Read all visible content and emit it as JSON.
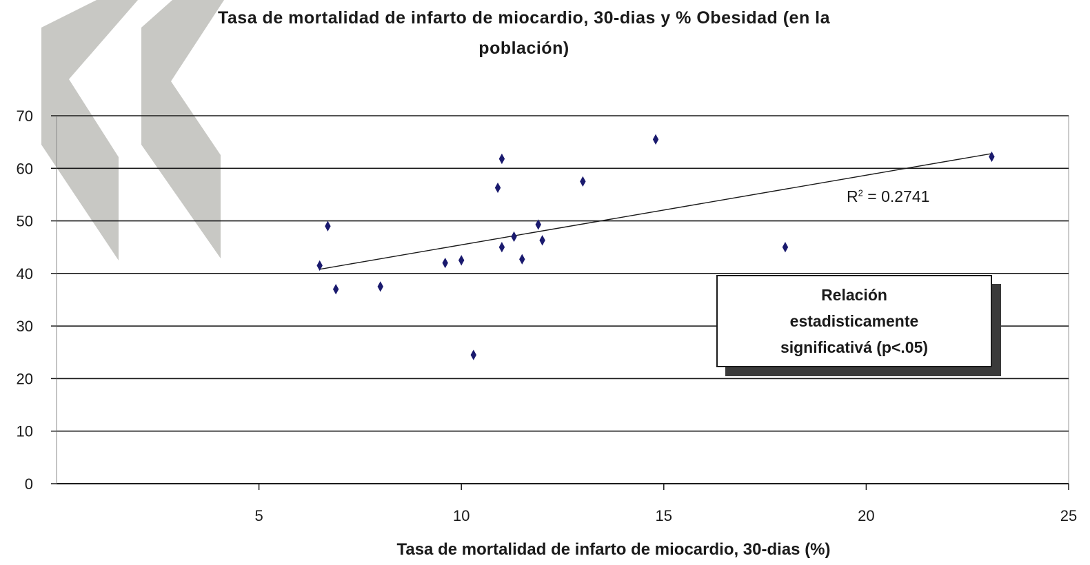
{
  "chart_data": {
    "type": "scatter",
    "title_line1": "Tasa de mortalidad de infarto de miocardio, 30-dias y % Obesidad (en la",
    "title_line2": "población)",
    "xlabel": "Tasa de mortalidad de infarto de miocardio, 30-dias (%)",
    "ylabel": "",
    "xlim": [
      0,
      25
    ],
    "ylim": [
      0,
      70
    ],
    "x_ticks": [
      5,
      10,
      15,
      20,
      25
    ],
    "y_ticks": [
      0,
      10,
      20,
      30,
      40,
      50,
      60,
      70
    ],
    "grid": "horizontal",
    "points": [
      {
        "x": 6.5,
        "y": 41.5
      },
      {
        "x": 6.7,
        "y": 49
      },
      {
        "x": 6.9,
        "y": 37
      },
      {
        "x": 8.0,
        "y": 37.5
      },
      {
        "x": 9.6,
        "y": 42
      },
      {
        "x": 10.0,
        "y": 42.5
      },
      {
        "x": 10.3,
        "y": 24.5
      },
      {
        "x": 10.9,
        "y": 56.3
      },
      {
        "x": 11.0,
        "y": 61.8
      },
      {
        "x": 11.0,
        "y": 45
      },
      {
        "x": 11.3,
        "y": 47
      },
      {
        "x": 11.5,
        "y": 42.7
      },
      {
        "x": 11.9,
        "y": 49.3
      },
      {
        "x": 12.0,
        "y": 46.3
      },
      {
        "x": 13.0,
        "y": 57.5
      },
      {
        "x": 14.8,
        "y": 65.5
      },
      {
        "x": 18.0,
        "y": 45
      },
      {
        "x": 23.1,
        "y": 62.2
      }
    ],
    "trendline": {
      "x1": 6.5,
      "y1": 40.8,
      "x2": 23.1,
      "y2": 62.8
    },
    "r2_label": "R",
    "r2_sup": "2",
    "r2_value": " = 0.2741",
    "callout_lines": [
      "Relación",
      "estadisticamente",
      "significativá (p<.05)"
    ],
    "colors": {
      "marker": "#1a1a6e",
      "grid": "#1a1a1a",
      "watermark": "#c8c8c4"
    }
  }
}
